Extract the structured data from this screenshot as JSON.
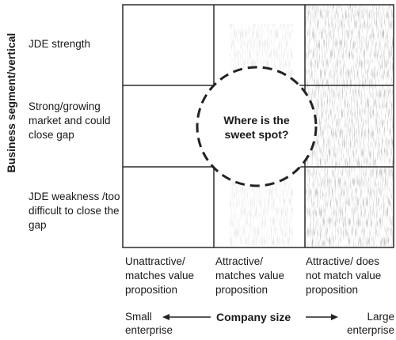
{
  "diagram": {
    "y_axis_title": "Business segment/vertical",
    "x_axis_title": "Company size",
    "rows": [
      {
        "label": "JDE strength"
      },
      {
        "label": "Strong/growing market and could close gap"
      },
      {
        "label": "JDE weakness /too difficult to close the gap"
      }
    ],
    "columns": [
      {
        "label": "Unattractive/ matches value proposition"
      },
      {
        "label": "Attractive/ matches value proposition"
      },
      {
        "label": "Attractive/ does not match value proposition"
      }
    ],
    "center_callout": "Where is the sweet spot?",
    "x_axis_left_end": "Small enterprise",
    "x_axis_right_end": "Large enterprise"
  }
}
